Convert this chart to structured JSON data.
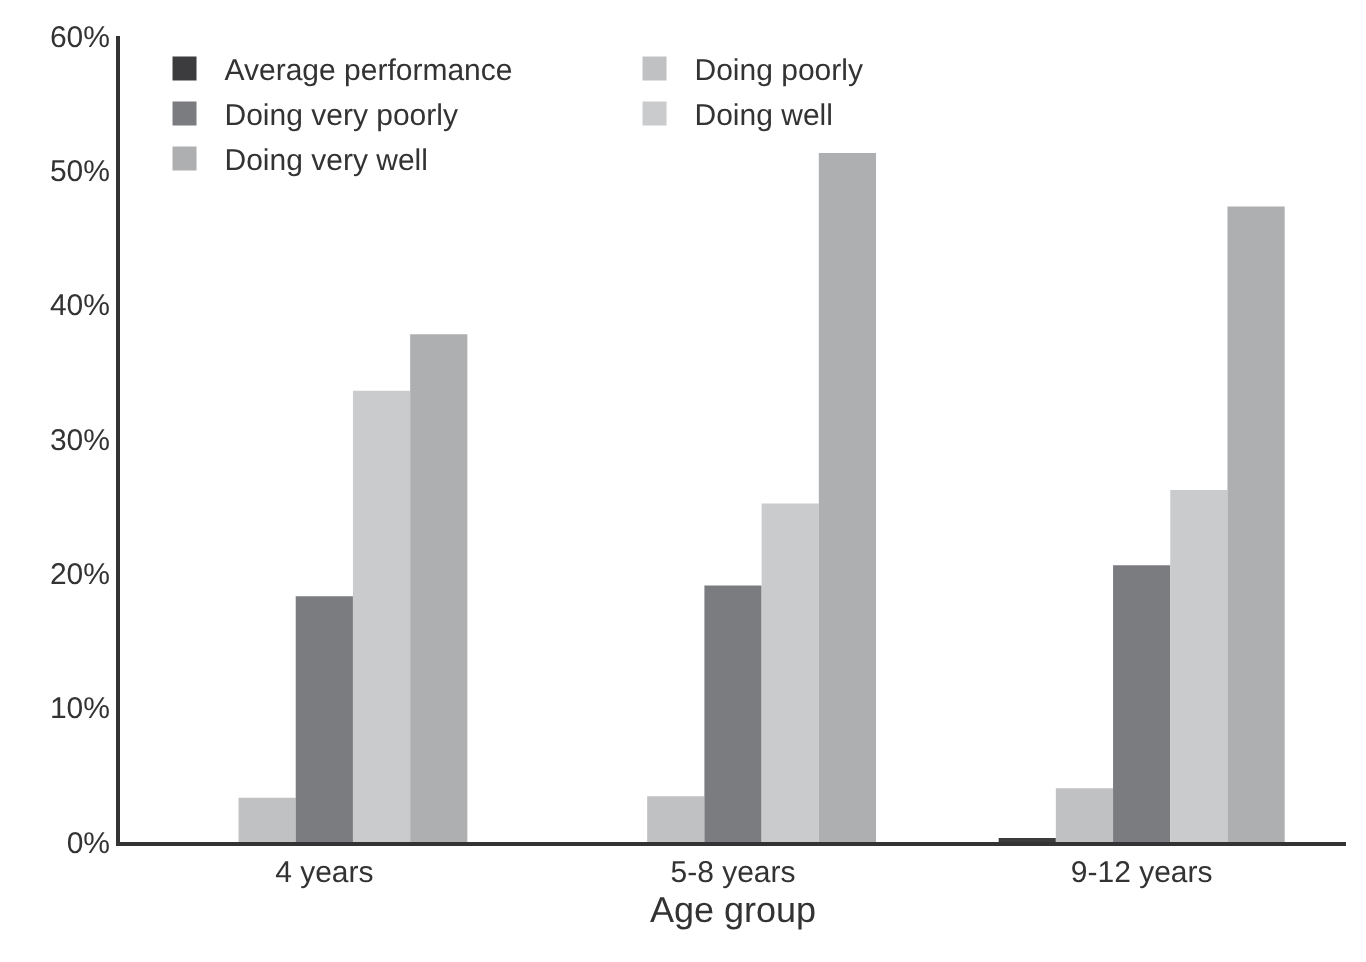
{
  "chart_data": {
    "type": "bar",
    "xlabel": "Age group",
    "categories": [
      "4 years",
      "5-8 years",
      "9-12 years"
    ],
    "series": [
      {
        "name": "Average performance",
        "color": "#3c3c3e",
        "values": [
          0,
          0,
          0.3
        ]
      },
      {
        "name": "Doing poorly",
        "color": "#c0c1c3",
        "values": [
          3.3,
          3.4,
          4.0
        ]
      },
      {
        "name": "Doing very poorly",
        "color": "#7b7c80",
        "values": [
          18.3,
          19.1,
          20.6
        ]
      },
      {
        "name": "Doing well",
        "color": "#cacbcd",
        "values": [
          33.6,
          25.2,
          26.2
        ]
      },
      {
        "name": "Doing very well",
        "color": "#aeafb1",
        "values": [
          37.8,
          51.3,
          47.3
        ]
      }
    ],
    "ylim": [
      0,
      60
    ],
    "yticks": [
      {
        "value": 0,
        "label": "0%"
      },
      {
        "value": 10,
        "label": "10%"
      },
      {
        "value": 20,
        "label": "20%"
      },
      {
        "value": 30,
        "label": "30%"
      },
      {
        "value": 40,
        "label": "40%"
      },
      {
        "value": 50,
        "label": "50%"
      },
      {
        "value": 60,
        "label": "60%"
      }
    ],
    "legend": "top"
  }
}
